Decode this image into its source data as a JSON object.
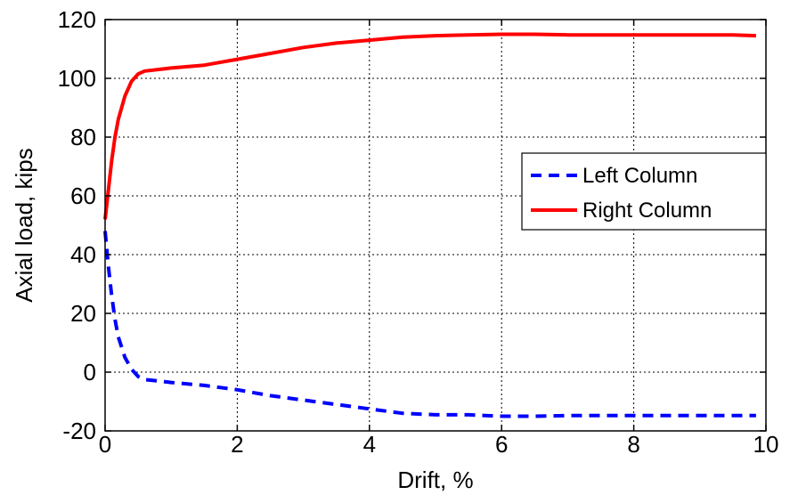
{
  "chart_data": {
    "type": "line",
    "title": "",
    "xlabel": "Drift, %",
    "ylabel": "Axial load, kips",
    "xlim": [
      0,
      10
    ],
    "ylim": [
      -20,
      120
    ],
    "xticks": [
      0,
      2,
      4,
      6,
      8,
      10
    ],
    "yticks": [
      -20,
      0,
      20,
      40,
      60,
      80,
      100,
      120
    ],
    "xtick_labels": [
      "0",
      "2",
      "4",
      "6",
      "8",
      "10"
    ],
    "ytick_labels": [
      "-20",
      "0",
      "20",
      "40",
      "60",
      "80",
      "100",
      "120"
    ],
    "grid": true,
    "legend_position": "right",
    "series": [
      {
        "name": "Left Column",
        "color": "#0000ff",
        "style": "dashed",
        "x": [
          0,
          0.05,
          0.1,
          0.15,
          0.2,
          0.3,
          0.4,
          0.5,
          0.6,
          0.8,
          1.0,
          1.5,
          2.0,
          2.5,
          3.0,
          3.5,
          4.0,
          4.5,
          5.0,
          5.5,
          6.0,
          6.5,
          7.0,
          7.5,
          8.0,
          8.5,
          9.0,
          9.5,
          9.85
        ],
        "y": [
          48,
          36,
          26,
          18,
          12,
          5,
          1,
          -1.5,
          -2.5,
          -3,
          -3.5,
          -4.5,
          -6,
          -8,
          -9.5,
          -11,
          -12.5,
          -14,
          -14.5,
          -14.5,
          -15,
          -15,
          -14.8,
          -14.8,
          -14.8,
          -14.8,
          -14.8,
          -14.8,
          -14.8
        ]
      },
      {
        "name": "Right Column",
        "color": "#ff0000",
        "style": "solid",
        "x": [
          0,
          0.05,
          0.1,
          0.15,
          0.2,
          0.3,
          0.4,
          0.5,
          0.6,
          0.8,
          1.0,
          1.5,
          2.0,
          2.5,
          3.0,
          3.5,
          4.0,
          4.5,
          5.0,
          5.5,
          6.0,
          6.5,
          7.0,
          7.5,
          8.0,
          8.5,
          9.0,
          9.5,
          9.85
        ],
        "y": [
          52,
          62,
          72,
          80,
          86,
          94,
          99,
          101.5,
          102.5,
          103,
          103.5,
          104.5,
          106.5,
          108.5,
          110.5,
          112,
          113,
          114,
          114.5,
          114.8,
          115,
          115,
          114.8,
          114.8,
          114.8,
          114.8,
          114.8,
          114.8,
          114.5
        ]
      }
    ]
  }
}
